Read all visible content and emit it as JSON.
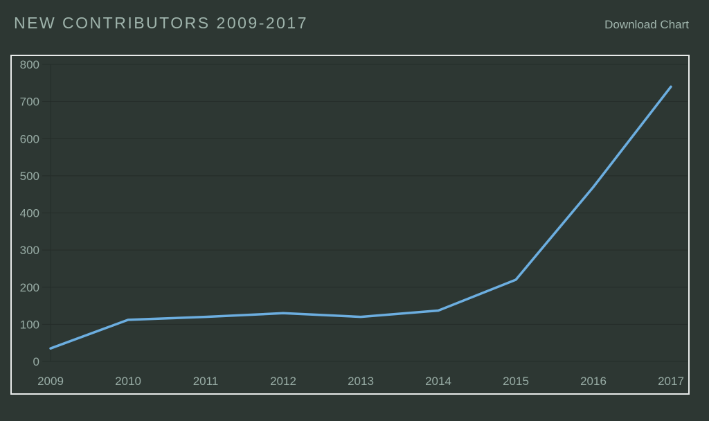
{
  "header": {
    "title": "NEW CONTRIBUTORS 2009-2017",
    "download_label": "Download Chart"
  },
  "chart_data": {
    "type": "line",
    "title": "NEW CONTRIBUTORS 2009-2017",
    "categories": [
      "2009",
      "2010",
      "2011",
      "2012",
      "2013",
      "2014",
      "2015",
      "2016",
      "2017"
    ],
    "values": [
      35,
      112,
      120,
      130,
      120,
      137,
      220,
      470,
      740
    ],
    "xlabel": "",
    "ylabel": "",
    "ylim": [
      0,
      800
    ],
    "yticks": [
      0,
      100,
      200,
      300,
      400,
      500,
      600,
      700,
      800
    ],
    "grid": "horizontal",
    "legend": "none"
  },
  "colors": {
    "background": "#2d3733",
    "frame_border": "#e8ebea",
    "gridline": "#242c29",
    "axis_line": "#242c29",
    "tick_label": "#97aba4",
    "series_line": "#6caee0",
    "title_text": "#9fb4ac"
  }
}
